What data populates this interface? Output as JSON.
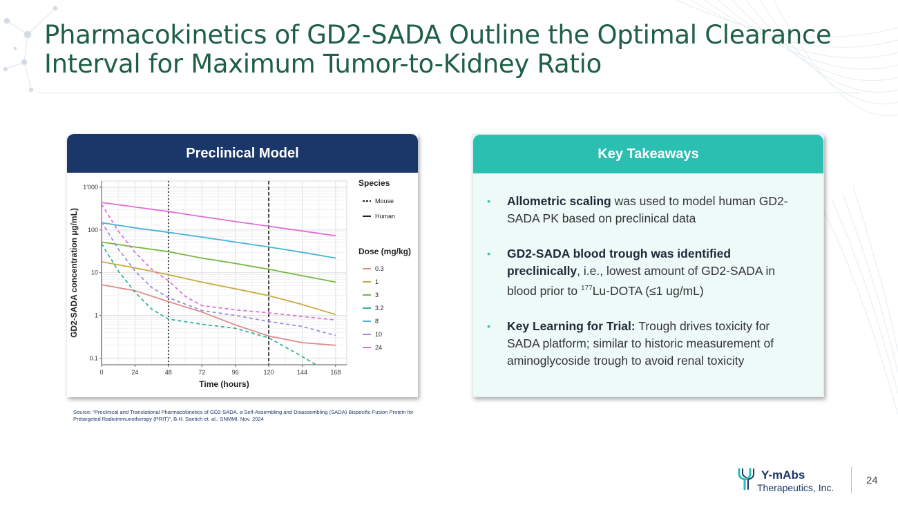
{
  "title": "Pharmacokinetics of GD2-SADA Outline the Optimal Clearance Interval for Maximum Tumor-to-Kidney Ratio",
  "left_panel": {
    "header": "Preclinical Model"
  },
  "right_panel": {
    "header": "Key Takeaways",
    "bullets": [
      {
        "bold": "Allometric scaling",
        "text": " was used to model human GD2-SADA PK based on preclinical data"
      },
      {
        "bold": "GD2-SADA blood trough was identified preclinically",
        "text": ", i.e., lowest amount of GD2-SADA in blood prior to ",
        "sup": "177",
        "text2": "Lu-DOTA (≤1 ug/mL)"
      },
      {
        "bold": "Key Learning for Trial:",
        "text": " Trough drives toxicity for SADA platform; similar to historic measurement of aminoglycoside trough to avoid renal toxicity"
      }
    ]
  },
  "source": "Source: “Preclinical and Translational Pharmacokinetics of GD2-SADA, a Self-Assembling and Disassembling (SADA) Bispecific Fusion Protein for Pretargeted Radioimmunotherapy (PRIT)”, B.H. Santich et. al., SNMMI, Nov. 2024",
  "logo": {
    "name": "Y-mAbs",
    "subtitle": "Therapeutics, Inc."
  },
  "page_number": "24",
  "chart_data": {
    "type": "line",
    "xlabel": "Time (hours)",
    "ylabel": "GD2-SADA concentration µg/mL)",
    "yscale": "log",
    "xlim": [
      0,
      176
    ],
    "ylim": [
      0.07,
      1400
    ],
    "xticks": [
      0,
      24,
      48,
      72,
      96,
      120,
      144,
      168
    ],
    "yticks": [
      {
        "value": 1000,
        "label": "1'000"
      },
      {
        "value": 100,
        "label": "100"
      },
      {
        "value": 10,
        "label": "10"
      },
      {
        "value": 1,
        "label": "1"
      },
      {
        "value": 0.1,
        "label": "0.1"
      }
    ],
    "vlines": [
      {
        "x": 48,
        "style": "dotted"
      },
      {
        "x": 120,
        "style": "dashed"
      }
    ],
    "legend": {
      "species_title": "Species",
      "species": [
        {
          "label": "Mouse",
          "style": "dashed"
        },
        {
          "label": "Human",
          "style": "solid"
        }
      ],
      "dose_title": "Dose (mg/kg)",
      "doses": [
        "0.3",
        "1",
        "3",
        "3.2",
        "8",
        "10",
        "24"
      ]
    },
    "colors": {
      "0.3": "#e08a8a",
      "1": "#c9a93c",
      "3": "#74b83d",
      "3.2": "#2bb59a",
      "8": "#45b4d6",
      "10": "#9a8ddf",
      "24": "#e36bd5"
    },
    "series": [
      {
        "dose": "0.3",
        "species": "Human",
        "points": [
          [
            0,
            0.07
          ],
          [
            0,
            5.2
          ],
          [
            24,
            3.8
          ],
          [
            48,
            2.1
          ],
          [
            72,
            1.2
          ],
          [
            96,
            0.6
          ],
          [
            120,
            0.33
          ],
          [
            144,
            0.23
          ],
          [
            168,
            0.2
          ]
        ]
      },
      {
        "dose": "1",
        "species": "Human",
        "points": [
          [
            0,
            0.07
          ],
          [
            0,
            18
          ],
          [
            24,
            13
          ],
          [
            48,
            9
          ],
          [
            72,
            6
          ],
          [
            96,
            4.2
          ],
          [
            120,
            2.9
          ],
          [
            144,
            1.8
          ],
          [
            168,
            1.05
          ]
        ]
      },
      {
        "dose": "3",
        "species": "Human",
        "points": [
          [
            0,
            0.07
          ],
          [
            0,
            52
          ],
          [
            24,
            40
          ],
          [
            48,
            31
          ],
          [
            72,
            22
          ],
          [
            96,
            16.5
          ],
          [
            120,
            12
          ],
          [
            144,
            8.5
          ],
          [
            168,
            6
          ]
        ]
      },
      {
        "dose": "8",
        "species": "Human",
        "points": [
          [
            0,
            0.07
          ],
          [
            0,
            148
          ],
          [
            24,
            112
          ],
          [
            48,
            88
          ],
          [
            72,
            68
          ],
          [
            96,
            52
          ],
          [
            120,
            40
          ],
          [
            144,
            30
          ],
          [
            168,
            22
          ]
        ]
      },
      {
        "dose": "24",
        "species": "Human",
        "points": [
          [
            0,
            0.07
          ],
          [
            0,
            440
          ],
          [
            24,
            345
          ],
          [
            48,
            270
          ],
          [
            72,
            205
          ],
          [
            96,
            158
          ],
          [
            120,
            122
          ],
          [
            144,
            95
          ],
          [
            168,
            73
          ]
        ]
      },
      {
        "dose": "3.2",
        "species": "Mouse",
        "points": [
          [
            0,
            48
          ],
          [
            12,
            11
          ],
          [
            24,
            3.5
          ],
          [
            36,
            1.4
          ],
          [
            48,
            0.82
          ],
          [
            72,
            0.62
          ],
          [
            96,
            0.5
          ],
          [
            120,
            0.3
          ],
          [
            140,
            0.13
          ],
          [
            154,
            0.07
          ]
        ]
      },
      {
        "dose": "10",
        "species": "Mouse",
        "points": [
          [
            0,
            155
          ],
          [
            12,
            36
          ],
          [
            24,
            11
          ],
          [
            36,
            4.5
          ],
          [
            48,
            2.6
          ],
          [
            72,
            1.3
          ],
          [
            96,
            1.0
          ],
          [
            120,
            0.72
          ],
          [
            144,
            0.55
          ],
          [
            168,
            0.34
          ]
        ]
      },
      {
        "dose": "24",
        "species": "Mouse",
        "points": [
          [
            0,
            400
          ],
          [
            12,
            95
          ],
          [
            24,
            30
          ],
          [
            36,
            12
          ],
          [
            48,
            6.5
          ],
          [
            60,
            2.8
          ],
          [
            72,
            1.7
          ],
          [
            96,
            1.35
          ],
          [
            120,
            1.15
          ],
          [
            144,
            0.95
          ],
          [
            168,
            0.78
          ]
        ]
      }
    ]
  }
}
